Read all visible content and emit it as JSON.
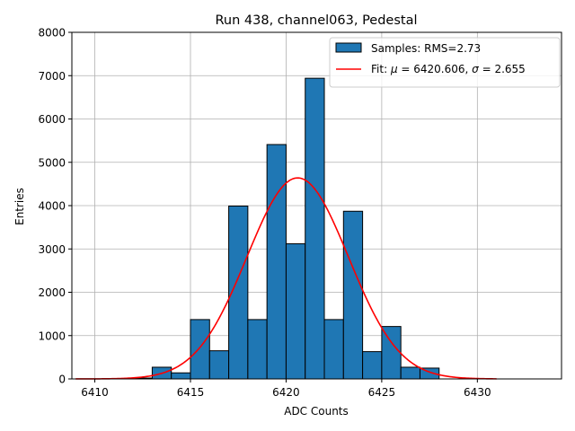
{
  "chart_data": {
    "type": "bar",
    "title": "Run 438, channel063, Pedestal",
    "xlabel": "ADC Counts",
    "ylabel": "Entries",
    "xlim": [
      6408.8,
      6434.4
    ],
    "ylim": [
      0,
      8000
    ],
    "xticks": [
      "6410",
      "6415",
      "6420",
      "6425",
      "6430"
    ],
    "xtick_values": [
      6410,
      6415,
      6420,
      6425,
      6430
    ],
    "yticks": [
      "0",
      "1000",
      "2000",
      "3000",
      "4000",
      "5000",
      "6000",
      "7000",
      "8000"
    ],
    "ytick_values": [
      0,
      1000,
      2000,
      3000,
      4000,
      5000,
      6000,
      7000,
      8000
    ],
    "grid": true,
    "legend_position": "top-right",
    "histogram": {
      "name": "Samples: RMS=2.73",
      "color": "#1f77b4",
      "edge_color": "#000000",
      "bin_edges": [
        6412,
        6413,
        6414,
        6415,
        6416,
        6417,
        6418,
        6419,
        6420,
        6421,
        6422,
        6423,
        6424,
        6425,
        6426,
        6427,
        6428
      ],
      "values": [
        20,
        270,
        140,
        1370,
        650,
        3990,
        1370,
        5410,
        3120,
        6940,
        1370,
        3870,
        630,
        1210,
        270,
        250
      ]
    },
    "fit": {
      "name": "Fit: μ = 6420.606, σ = 2.655",
      "name_parts": [
        "Fit: ",
        "μ",
        " = 6420.606, ",
        "σ",
        " = 2.655"
      ],
      "color": "#ff0000",
      "mu": 6420.606,
      "sigma": 2.655,
      "amplitude": 4640,
      "x_range": [
        6409,
        6431
      ]
    }
  }
}
